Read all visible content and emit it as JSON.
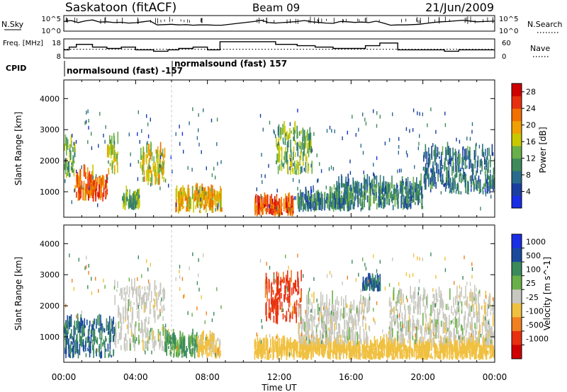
{
  "header": {
    "site": "Saskatoon (fitACF)",
    "beam": "Beam 09",
    "date": "21/Jun/2009"
  },
  "chart_data": [
    {
      "type": "line",
      "name_panel": "noise",
      "left_label": "N.Sky",
      "right_label": "N.Search",
      "left_ticks": [
        "10^5",
        "10^0"
      ],
      "right_ticks": [
        "10^5",
        "10^0"
      ],
      "x_range_hours": [
        0,
        24
      ],
      "series": [
        {
          "name": "N.Sky",
          "style": "solid",
          "x": [
            0,
            0.4,
            0.8,
            1.2,
            1.6,
            2.0,
            2.4,
            2.8,
            3.2,
            3.6,
            4.0,
            4.4,
            4.8,
            5.2,
            5.6,
            6.0,
            6.4,
            6.8,
            7.2,
            7.6,
            8.0,
            8.4,
            8.8,
            10.6,
            11.0,
            11.4,
            11.8,
            12.2,
            12.6,
            13.0,
            13.4,
            13.8,
            14.2,
            14.6,
            15.0,
            15.4,
            15.8,
            16.2,
            16.6,
            17.0,
            17.4,
            17.8,
            18.2,
            18.6,
            19.0,
            19.4,
            19.8,
            20.2,
            20.6,
            21.0,
            21.4,
            21.8,
            22.2,
            22.6,
            23.0,
            23.4,
            24.0
          ],
          "y": [
            0.62,
            0.68,
            0.55,
            0.66,
            0.72,
            0.58,
            0.6,
            0.55,
            0.57,
            0.52,
            0.54,
            0.6,
            0.66,
            0.4,
            0.42,
            0.44,
            0.4,
            0.42,
            0.38,
            0.4,
            0.4,
            0.38,
            0.38,
            0.62,
            0.7,
            0.55,
            0.52,
            0.55,
            0.58,
            0.62,
            0.68,
            0.6,
            0.56,
            0.52,
            0.5,
            0.62,
            0.6,
            0.56,
            0.58,
            0.55,
            0.64,
            0.52,
            0.38,
            0.4,
            0.4,
            0.42,
            0.44,
            0.5,
            0.56,
            0.6,
            0.62,
            0.66,
            0.7,
            0.65,
            0.6,
            0.62,
            0.64
          ]
        }
      ]
    },
    {
      "type": "line",
      "name_panel": "frequency",
      "left_label": "Freq. [MHz]",
      "right_label": "Nave",
      "left_ticks": [
        "18",
        "8"
      ],
      "right_ticks": [
        "60",
        "0"
      ],
      "x_range_hours": [
        0,
        24
      ],
      "series": [
        {
          "name": "Freq.",
          "style": "step",
          "x": [
            0,
            0.3,
            0.7,
            1.6,
            2.4,
            3.2,
            4.0,
            5.0,
            5.8,
            6.4,
            7.2,
            8.0,
            8.7,
            10.6,
            11.8,
            13.0,
            14.0,
            15.0,
            16.0,
            16.8,
            17.6,
            18.6,
            19.6,
            20.4,
            21.2,
            22.0,
            24.0
          ],
          "y": [
            12,
            14,
            16,
            14,
            13,
            14,
            12,
            11,
            12,
            13,
            14,
            12,
            18,
            18,
            16,
            15,
            14,
            13,
            13,
            15,
            17,
            12,
            12,
            12,
            11,
            12,
            12
          ]
        },
        {
          "name": "Nave",
          "style": "dotted",
          "x": [
            0,
            24
          ],
          "y": [
            30,
            30
          ]
        }
      ]
    },
    {
      "type": "table",
      "name_panel": "cpid",
      "label": "CPID",
      "entries": [
        {
          "text": "normalsound (fast) -157",
          "start_hour": 0.0
        },
        {
          "text": "normalsound (fast) 157",
          "start_hour": 6.0
        }
      ]
    },
    {
      "type": "heatmap",
      "name_panel": "power",
      "ylabel": "Slant Range [km]",
      "xlabel": "",
      "xlim": [
        0,
        24
      ],
      "ylim": [
        180,
        4600
      ],
      "yticks": [
        1000,
        2000,
        3000,
        4000
      ],
      "colorbar": {
        "label": "Power [dB]",
        "ticks": [
          4,
          8,
          12,
          16,
          20,
          24,
          28
        ],
        "range": [
          0,
          30
        ]
      },
      "data_gap_hours": [
        8.8,
        10.6
      ],
      "features": [
        {
          "t0": 0.0,
          "t1": 0.6,
          "r0": 1400,
          "r1": 2500,
          "value": 14
        },
        {
          "t0": 0.6,
          "t1": 1.6,
          "r0": 700,
          "r1": 1500,
          "value": 24
        },
        {
          "t0": 1.6,
          "t1": 2.4,
          "r0": 650,
          "r1": 1300,
          "value": 26
        },
        {
          "t0": 2.4,
          "t1": 3.0,
          "r0": 1500,
          "r1": 2600,
          "value": 16
        },
        {
          "t0": 3.2,
          "t1": 4.2,
          "r0": 400,
          "r1": 800,
          "value": 14
        },
        {
          "t0": 4.2,
          "t1": 5.6,
          "r0": 1200,
          "r1": 2300,
          "value": 18
        },
        {
          "t0": 6.2,
          "t1": 8.8,
          "r0": 300,
          "r1": 900,
          "value": 20
        },
        {
          "t0": 10.6,
          "t1": 12.8,
          "r0": 200,
          "r1": 600,
          "value": 26
        },
        {
          "t0": 11.8,
          "t1": 13.8,
          "r0": 1500,
          "r1": 2900,
          "value": 14
        },
        {
          "t0": 13.0,
          "t1": 16.0,
          "r0": 350,
          "r1": 800,
          "value": 10
        },
        {
          "t0": 15.0,
          "t1": 20.0,
          "r0": 400,
          "r1": 1200,
          "value": 10
        },
        {
          "t0": 20.0,
          "t1": 24.0,
          "r0": 900,
          "r1": 2200,
          "value": 9
        }
      ]
    },
    {
      "type": "heatmap",
      "name_panel": "velocity",
      "ylabel": "Slant Range [km]",
      "xlabel": "Time UT",
      "xlim": [
        0,
        24
      ],
      "ylim": [
        180,
        4600
      ],
      "yticks": [
        1000,
        2000,
        3000,
        4000
      ],
      "xtick_labels": [
        "00:00",
        "04:00",
        "08:00",
        "12:00",
        "16:00",
        "20:00",
        "00:00"
      ],
      "xtick_values": [
        0,
        4,
        8,
        12,
        16,
        20,
        24
      ],
      "colorbar": {
        "label": "Velocity [m s^-1]",
        "ticks": [
          "1000",
          "500",
          "100",
          "25",
          "-25",
          "-100",
          "-500",
          "-1000"
        ]
      },
      "data_gap_hours": [
        8.8,
        10.6
      ],
      "features": [
        {
          "t0": 0.0,
          "t1": 2.8,
          "r0": 300,
          "r1": 1400,
          "value": 300
        },
        {
          "t0": 2.8,
          "t1": 5.6,
          "r0": 500,
          "r1": 2600,
          "value": 0
        },
        {
          "t0": 5.6,
          "t1": 7.4,
          "r0": 300,
          "r1": 900,
          "value": 60
        },
        {
          "t0": 7.4,
          "t1": 8.8,
          "r0": 300,
          "r1": 900,
          "value": -40
        },
        {
          "t0": 11.2,
          "t1": 13.2,
          "r0": 1400,
          "r1": 2800,
          "value": -700
        },
        {
          "t0": 10.6,
          "t1": 24.0,
          "r0": 250,
          "r1": 700,
          "value": -60
        },
        {
          "t0": 13.0,
          "t1": 17.0,
          "r0": 700,
          "r1": 2100,
          "value": 0
        },
        {
          "t0": 16.6,
          "t1": 17.6,
          "r0": 2450,
          "r1": 2700,
          "value": 300
        },
        {
          "t0": 18.0,
          "t1": 24.0,
          "r0": 700,
          "r1": 2300,
          "value": 0
        }
      ]
    }
  ]
}
